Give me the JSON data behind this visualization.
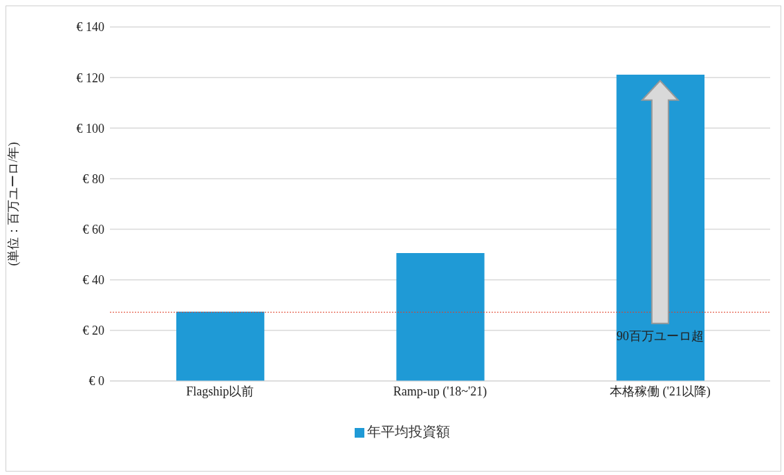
{
  "chart_data": {
    "type": "bar",
    "ylabel": "(単位：百万ユーロ/年)",
    "categories": [
      "Flagship以前",
      "Ramp-up ('18~'21)",
      "本格稼働 ('21以降)"
    ],
    "series": [
      {
        "name": "年平均投資額",
        "color": "#1f9ad6",
        "values": [
          27.4,
          50.6,
          121.1
        ]
      }
    ],
    "ylim": [
      0,
      140
    ],
    "yticks": [
      {
        "value": 0,
        "label": "€ 0"
      },
      {
        "value": 20,
        "label": "€ 20"
      },
      {
        "value": 40,
        "label": "€ 40"
      },
      {
        "value": 60,
        "label": "€ 60"
      },
      {
        "value": 80,
        "label": "€ 80"
      },
      {
        "value": 100,
        "label": "€ 100"
      },
      {
        "value": 120,
        "label": "€ 120"
      },
      {
        "value": 140,
        "label": "€ 140"
      }
    ],
    "grid": "y",
    "legend": "bottom",
    "ref_lines": [
      {
        "axis": "y",
        "value": 27.2,
        "color": "#e0402a",
        "line_style": "dotted"
      }
    ],
    "annotations": [
      "90百万ユーロ超"
    ]
  }
}
